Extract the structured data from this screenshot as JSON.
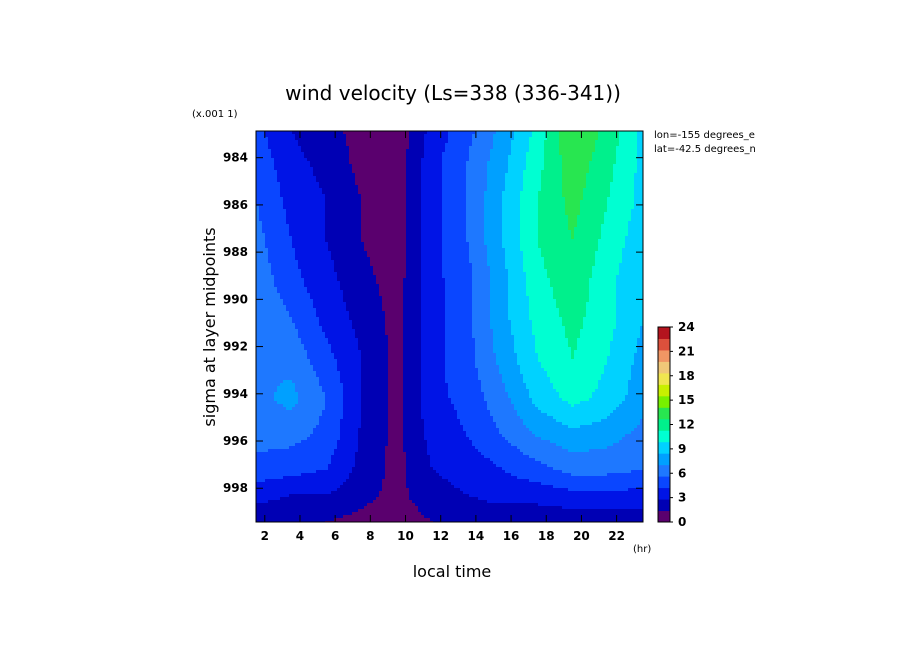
{
  "chart_data": {
    "type": "heatmap",
    "title": "wind velocity (Ls=338 (336-341))",
    "xlabel": "local time",
    "xunit": "(hr)",
    "ylabel": "sigma at layer midpoints",
    "yscale_note": "(x.001 1)",
    "annotations": [
      "lon=-155 degrees_e",
      "lat=-42.5 degrees_n"
    ],
    "xlim": [
      1.5,
      23.5
    ],
    "ylim": [
      0.99943,
      0.98287
    ],
    "x_ticks": [
      2,
      4,
      6,
      8,
      10,
      12,
      14,
      16,
      18,
      20,
      22
    ],
    "y_ticks": [
      984,
      986,
      988,
      990,
      992,
      994,
      996,
      998
    ],
    "colorbar": {
      "levels": [
        0,
        1.5,
        3,
        4.5,
        6,
        7.5,
        9,
        10.5,
        12,
        13.5,
        15,
        16.5,
        18,
        19.5,
        21,
        22.5,
        24
      ],
      "tick_labels": [
        "0",
        "3",
        "6",
        "9",
        "12",
        "15",
        "18",
        "21",
        "24"
      ],
      "colors": [
        "#5a006e",
        "#0000b4",
        "#0014e6",
        "#0a46ff",
        "#1e78ff",
        "#00a0ff",
        "#00d2ff",
        "#00ffd2",
        "#00f08c",
        "#28e650",
        "#78f000",
        "#c8f000",
        "#f0e650",
        "#f0c878",
        "#f09664",
        "#dc503c",
        "#b4141e"
      ]
    },
    "x": [
      1.5,
      3.5,
      5.5,
      7.5,
      9.5,
      11.5,
      13.5,
      15.5,
      17.5,
      19.5,
      21.5,
      23.5
    ],
    "y": [
      0.98287,
      0.9842,
      0.9858,
      0.9875,
      0.9892,
      0.9908,
      0.9925,
      0.9942,
      0.9958,
      0.9972,
      0.9983,
      0.99943
    ],
    "values": [
      [
        5.0,
        3.0,
        2.0,
        1.0,
        0.5,
        3.5,
        5.5,
        8.0,
        11.0,
        15.0,
        13.0,
        10.0
      ],
      [
        5.5,
        3.5,
        2.5,
        1.0,
        0.5,
        4.0,
        6.0,
        8.5,
        11.5,
        14.5,
        12.5,
        10.0
      ],
      [
        6.0,
        4.0,
        3.0,
        1.5,
        0.5,
        4.0,
        6.0,
        9.0,
        12.0,
        14.0,
        12.0,
        10.0
      ],
      [
        6.5,
        4.5,
        3.0,
        1.5,
        0.5,
        4.0,
        6.0,
        9.0,
        12.0,
        13.5,
        11.5,
        9.5
      ],
      [
        7.0,
        5.0,
        3.5,
        2.0,
        0.8,
        4.0,
        5.5,
        8.5,
        11.5,
        13.0,
        11.0,
        9.0
      ],
      [
        7.5,
        6.0,
        4.0,
        2.5,
        1.0,
        4.0,
        5.5,
        8.5,
        11.0,
        12.5,
        11.0,
        9.0
      ],
      [
        7.5,
        7.0,
        5.0,
        3.0,
        1.0,
        4.0,
        5.5,
        8.0,
        10.5,
        12.0,
        10.5,
        8.5
      ],
      [
        7.0,
        8.0,
        6.0,
        3.0,
        1.0,
        4.0,
        5.0,
        7.0,
        9.5,
        11.0,
        10.0,
        8.0
      ],
      [
        6.5,
        6.5,
        5.5,
        2.8,
        1.0,
        3.5,
        4.5,
        6.0,
        7.5,
        8.5,
        8.0,
        7.0
      ],
      [
        5.5,
        5.0,
        4.5,
        2.5,
        1.0,
        3.0,
        3.5,
        4.5,
        5.5,
        6.5,
        6.5,
        6.0
      ],
      [
        3.5,
        3.0,
        3.0,
        2.0,
        1.0,
        2.5,
        3.0,
        3.5,
        3.5,
        4.0,
        4.0,
        4.0
      ],
      [
        2.0,
        1.5,
        1.5,
        1.0,
        0.5,
        1.5,
        2.0,
        2.0,
        2.0,
        2.0,
        2.0,
        2.0
      ]
    ]
  }
}
